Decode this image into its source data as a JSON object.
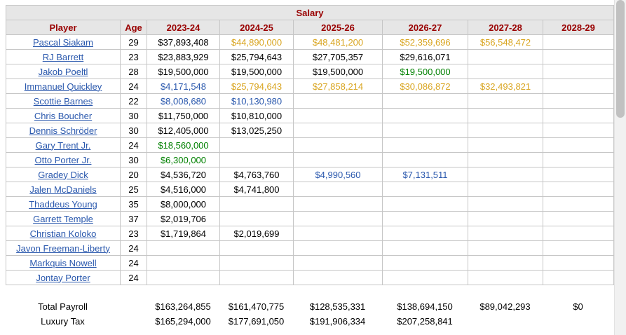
{
  "title": "Salary",
  "columns": [
    "Player",
    "Age",
    "2023-24",
    "2024-25",
    "2025-26",
    "2026-27",
    "2027-28",
    "2028-29"
  ],
  "colors": {
    "k": "#000000",
    "o": "#d9a520",
    "g": "#008000",
    "b": "#2a58ad",
    "header_text": "#990000",
    "header_bg": "#e6e6e6",
    "link": "#2a58ad"
  },
  "players": [
    {
      "name": "Pascal Siakam",
      "age": "29",
      "cells": [
        [
          "$37,893,408",
          "k"
        ],
        [
          "$44,890,000",
          "o"
        ],
        [
          "$48,481,200",
          "o"
        ],
        [
          "$52,359,696",
          "o"
        ],
        [
          "$56,548,472",
          "o"
        ],
        [
          "",
          ""
        ]
      ]
    },
    {
      "name": "RJ Barrett",
      "age": "23",
      "cells": [
        [
          "$23,883,929",
          "k"
        ],
        [
          "$25,794,643",
          "k"
        ],
        [
          "$27,705,357",
          "k"
        ],
        [
          "$29,616,071",
          "k"
        ],
        [
          "",
          ""
        ],
        [
          "",
          ""
        ]
      ]
    },
    {
      "name": "Jakob Poeltl",
      "age": "28",
      "cells": [
        [
          "$19,500,000",
          "k"
        ],
        [
          "$19,500,000",
          "k"
        ],
        [
          "$19,500,000",
          "k"
        ],
        [
          "$19,500,000",
          "g"
        ],
        [
          "",
          ""
        ],
        [
          "",
          ""
        ]
      ]
    },
    {
      "name": "Immanuel Quickley",
      "age": "24",
      "cells": [
        [
          "$4,171,548",
          "b"
        ],
        [
          "$25,794,643",
          "o"
        ],
        [
          "$27,858,214",
          "o"
        ],
        [
          "$30,086,872",
          "o"
        ],
        [
          "$32,493,821",
          "o"
        ],
        [
          "",
          ""
        ]
      ]
    },
    {
      "name": "Scottie Barnes",
      "age": "22",
      "cells": [
        [
          "$8,008,680",
          "b"
        ],
        [
          "$10,130,980",
          "b"
        ],
        [
          "",
          ""
        ],
        [
          "",
          ""
        ],
        [
          "",
          ""
        ],
        [
          "",
          ""
        ]
      ]
    },
    {
      "name": "Chris Boucher",
      "age": "30",
      "cells": [
        [
          "$11,750,000",
          "k"
        ],
        [
          "$10,810,000",
          "k"
        ],
        [
          "",
          ""
        ],
        [
          "",
          ""
        ],
        [
          "",
          ""
        ],
        [
          "",
          ""
        ]
      ]
    },
    {
      "name": "Dennis Schröder",
      "age": "30",
      "cells": [
        [
          "$12,405,000",
          "k"
        ],
        [
          "$13,025,250",
          "k"
        ],
        [
          "",
          ""
        ],
        [
          "",
          ""
        ],
        [
          "",
          ""
        ],
        [
          "",
          ""
        ]
      ]
    },
    {
      "name": "Gary Trent Jr.",
      "age": "24",
      "cells": [
        [
          "$18,560,000",
          "g"
        ],
        [
          "",
          ""
        ],
        [
          "",
          ""
        ],
        [
          "",
          ""
        ],
        [
          "",
          ""
        ],
        [
          "",
          ""
        ]
      ]
    },
    {
      "name": "Otto Porter Jr.",
      "age": "30",
      "cells": [
        [
          "$6,300,000",
          "g"
        ],
        [
          "",
          ""
        ],
        [
          "",
          ""
        ],
        [
          "",
          ""
        ],
        [
          "",
          ""
        ],
        [
          "",
          ""
        ]
      ]
    },
    {
      "name": "Gradey Dick",
      "age": "20",
      "cells": [
        [
          "$4,536,720",
          "k"
        ],
        [
          "$4,763,760",
          "k"
        ],
        [
          "$4,990,560",
          "b"
        ],
        [
          "$7,131,511",
          "b"
        ],
        [
          "",
          ""
        ],
        [
          "",
          ""
        ]
      ]
    },
    {
      "name": "Jalen McDaniels",
      "age": "25",
      "cells": [
        [
          "$4,516,000",
          "k"
        ],
        [
          "$4,741,800",
          "k"
        ],
        [
          "",
          ""
        ],
        [
          "",
          ""
        ],
        [
          "",
          ""
        ],
        [
          "",
          ""
        ]
      ]
    },
    {
      "name": "Thaddeus Young",
      "age": "35",
      "cells": [
        [
          "$8,000,000",
          "k"
        ],
        [
          "",
          ""
        ],
        [
          "",
          ""
        ],
        [
          "",
          ""
        ],
        [
          "",
          ""
        ],
        [
          "",
          ""
        ]
      ]
    },
    {
      "name": "Garrett Temple",
      "age": "37",
      "cells": [
        [
          "$2,019,706",
          "k"
        ],
        [
          "",
          ""
        ],
        [
          "",
          ""
        ],
        [
          "",
          ""
        ],
        [
          "",
          ""
        ],
        [
          "",
          ""
        ]
      ]
    },
    {
      "name": "Christian Koloko",
      "age": "23",
      "cells": [
        [
          "$1,719,864",
          "k"
        ],
        [
          "$2,019,699",
          "k"
        ],
        [
          "",
          ""
        ],
        [
          "",
          ""
        ],
        [
          "",
          ""
        ],
        [
          "",
          ""
        ]
      ]
    },
    {
      "name": "Javon Freeman-Liberty",
      "age": "24",
      "cells": [
        [
          "",
          ""
        ],
        [
          "",
          ""
        ],
        [
          "",
          ""
        ],
        [
          "",
          ""
        ],
        [
          "",
          ""
        ],
        [
          "",
          ""
        ]
      ]
    },
    {
      "name": "Markquis Nowell",
      "age": "24",
      "cells": [
        [
          "",
          ""
        ],
        [
          "",
          ""
        ],
        [
          "",
          ""
        ],
        [
          "",
          ""
        ],
        [
          "",
          ""
        ],
        [
          "",
          ""
        ]
      ]
    },
    {
      "name": "Jontay Porter",
      "age": "24",
      "cells": [
        [
          "",
          ""
        ],
        [
          "",
          ""
        ],
        [
          "",
          ""
        ],
        [
          "",
          ""
        ],
        [
          "",
          ""
        ],
        [
          "",
          ""
        ]
      ]
    }
  ],
  "totals": [
    {
      "label": "Total Payroll",
      "values": [
        "$163,264,855",
        "$161,470,775",
        "$128,535,331",
        "$138,694,150",
        "$89,042,293",
        "$0"
      ]
    },
    {
      "label": "Luxury Tax",
      "values": [
        "$165,294,000",
        "$177,691,050",
        "$191,906,334",
        "$207,258,841",
        "",
        ""
      ]
    }
  ]
}
